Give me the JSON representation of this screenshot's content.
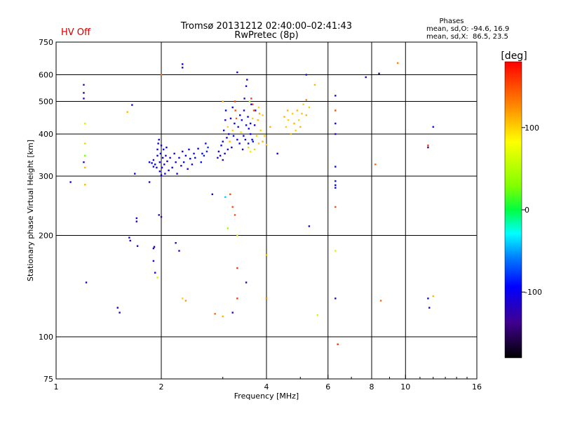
{
  "chart_data": {
    "type": "scatter",
    "title": "Tromsø 20131212 02:40:00–02:41:43",
    "subtitle": "RwPretec (8p)",
    "status": "HV Off",
    "status_color": "#d00000",
    "xlabel": "Frequency [MHz]",
    "ylabel": "Stationary phase Virtual Height [km]",
    "x_scale": "log",
    "y_scale": "log",
    "xlim": [
      1,
      16
    ],
    "ylim": [
      75,
      750
    ],
    "x_ticks": [
      {
        "value": 1,
        "label": "1"
      },
      {
        "value": 2,
        "label": "2"
      },
      {
        "value": 4,
        "label": "4"
      },
      {
        "value": 6,
        "label": "6"
      },
      {
        "value": 8,
        "label": "8"
      },
      {
        "value": 10,
        "label": "10"
      },
      {
        "value": 16,
        "label": "16"
      }
    ],
    "x_grid": [
      2,
      4,
      6,
      8,
      10
    ],
    "y_ticks": [
      {
        "value": 75,
        "label": "75"
      },
      {
        "value": 100,
        "label": "100"
      },
      {
        "value": 200,
        "label": "200"
      },
      {
        "value": 300,
        "label": "300"
      },
      {
        "value": 400,
        "label": "400"
      },
      {
        "value": 500,
        "label": "500"
      },
      {
        "value": 600,
        "label": "600"
      },
      {
        "value": 750,
        "label": "750"
      }
    ],
    "y_grid": [
      100,
      200,
      300,
      400,
      500,
      600
    ],
    "phases": {
      "heading": "Phases",
      "line_o": "mean, sd,O: -94.6, 16.9",
      "line_x": "mean, sd,X:  86.5, 23.5"
    },
    "colorbar": {
      "label": "[deg]",
      "range": [
        -180,
        180
      ],
      "ticks": [
        {
          "value": 100,
          "label": "100"
        },
        {
          "value": 0,
          "label": "0"
        },
        {
          "value": -100,
          "label": "-100"
        }
      ]
    },
    "series_units": "x: frequency MHz, y: virtual height km, p: phase deg",
    "points": [
      {
        "x": 1.1,
        "y": 288,
        "p": -110
      },
      {
        "x": 1.2,
        "y": 560,
        "p": -130
      },
      {
        "x": 1.2,
        "y": 530,
        "p": -150
      },
      {
        "x": 1.2,
        "y": 510,
        "p": -120
      },
      {
        "x": 1.21,
        "y": 430,
        "p": 60
      },
      {
        "x": 1.21,
        "y": 375,
        "p": 100
      },
      {
        "x": 1.21,
        "y": 345,
        "p": 30
      },
      {
        "x": 1.2,
        "y": 330,
        "p": -120
      },
      {
        "x": 1.21,
        "y": 318,
        "p": 110
      },
      {
        "x": 1.21,
        "y": 283,
        "p": 110
      },
      {
        "x": 1.22,
        "y": 145,
        "p": -110
      },
      {
        "x": 1.5,
        "y": 122,
        "p": -110
      },
      {
        "x": 1.52,
        "y": 118,
        "p": -115
      },
      {
        "x": 1.6,
        "y": 465,
        "p": 110
      },
      {
        "x": 1.65,
        "y": 488,
        "p": -110
      },
      {
        "x": 1.68,
        "y": 305,
        "p": -100
      },
      {
        "x": 1.62,
        "y": 197,
        "p": -110
      },
      {
        "x": 1.63,
        "y": 193,
        "p": -115
      },
      {
        "x": 1.7,
        "y": 225,
        "p": -110
      },
      {
        "x": 1.7,
        "y": 220,
        "p": -110
      },
      {
        "x": 1.71,
        "y": 186,
        "p": -120
      },
      {
        "x": 1.85,
        "y": 288,
        "p": -120
      },
      {
        "x": 1.9,
        "y": 183,
        "p": -115
      },
      {
        "x": 1.91,
        "y": 185,
        "p": -110
      },
      {
        "x": 1.9,
        "y": 168,
        "p": -110
      },
      {
        "x": 1.92,
        "y": 155,
        "p": -105
      },
      {
        "x": 1.95,
        "y": 150,
        "p": 60
      },
      {
        "x": 1.97,
        "y": 230,
        "p": -115
      },
      {
        "x": 2.0,
        "y": 227,
        "p": -140
      },
      {
        "x": 2.0,
        "y": 600,
        "p": 140
      },
      {
        "x": 1.85,
        "y": 330,
        "p": -105
      },
      {
        "x": 1.88,
        "y": 328,
        "p": -100
      },
      {
        "x": 1.9,
        "y": 335,
        "p": -105
      },
      {
        "x": 1.9,
        "y": 320,
        "p": -110
      },
      {
        "x": 1.92,
        "y": 325,
        "p": -100
      },
      {
        "x": 1.94,
        "y": 318,
        "p": -105
      },
      {
        "x": 1.95,
        "y": 345,
        "p": -100
      },
      {
        "x": 1.95,
        "y": 360,
        "p": -105
      },
      {
        "x": 1.96,
        "y": 375,
        "p": -100
      },
      {
        "x": 1.97,
        "y": 385,
        "p": -105
      },
      {
        "x": 1.98,
        "y": 310,
        "p": -100
      },
      {
        "x": 1.98,
        "y": 330,
        "p": -110
      },
      {
        "x": 1.99,
        "y": 350,
        "p": -100
      },
      {
        "x": 2.0,
        "y": 370,
        "p": -105
      },
      {
        "x": 2.0,
        "y": 302,
        "p": -105
      },
      {
        "x": 2.01,
        "y": 318,
        "p": -100
      },
      {
        "x": 2.02,
        "y": 340,
        "p": -105
      },
      {
        "x": 2.03,
        "y": 360,
        "p": -100
      },
      {
        "x": 2.04,
        "y": 325,
        "p": -110
      },
      {
        "x": 2.05,
        "y": 305,
        "p": -100
      },
      {
        "x": 2.06,
        "y": 345,
        "p": -105
      },
      {
        "x": 2.07,
        "y": 365,
        "p": -100
      },
      {
        "x": 2.08,
        "y": 332,
        "p": -105
      },
      {
        "x": 2.1,
        "y": 312,
        "p": -100
      },
      {
        "x": 2.12,
        "y": 340,
        "p": -110
      },
      {
        "x": 2.15,
        "y": 318,
        "p": -100
      },
      {
        "x": 2.18,
        "y": 350,
        "p": -105
      },
      {
        "x": 2.2,
        "y": 330,
        "p": -100
      },
      {
        "x": 2.22,
        "y": 305,
        "p": -105
      },
      {
        "x": 2.25,
        "y": 340,
        "p": -100
      },
      {
        "x": 2.28,
        "y": 322,
        "p": -110
      },
      {
        "x": 2.3,
        "y": 355,
        "p": -100
      },
      {
        "x": 2.32,
        "y": 330,
        "p": -95
      },
      {
        "x": 2.35,
        "y": 345,
        "p": -100
      },
      {
        "x": 2.38,
        "y": 315,
        "p": -105
      },
      {
        "x": 2.4,
        "y": 360,
        "p": -100
      },
      {
        "x": 2.42,
        "y": 338,
        "p": -95
      },
      {
        "x": 2.45,
        "y": 325,
        "p": -100
      },
      {
        "x": 2.48,
        "y": 350,
        "p": -90
      },
      {
        "x": 2.5,
        "y": 340,
        "p": -95
      },
      {
        "x": 2.55,
        "y": 362,
        "p": -100
      },
      {
        "x": 2.6,
        "y": 330,
        "p": -90
      },
      {
        "x": 2.62,
        "y": 350,
        "p": -95
      },
      {
        "x": 2.65,
        "y": 345,
        "p": -85
      },
      {
        "x": 2.68,
        "y": 375,
        "p": -90
      },
      {
        "x": 2.7,
        "y": 355,
        "p": -85
      },
      {
        "x": 2.72,
        "y": 365,
        "p": -80
      },
      {
        "x": 2.2,
        "y": 190,
        "p": -120
      },
      {
        "x": 2.25,
        "y": 180,
        "p": -120
      },
      {
        "x": 2.3,
        "y": 630,
        "p": -110
      },
      {
        "x": 2.3,
        "y": 645,
        "p": -100
      },
      {
        "x": 2.35,
        "y": 128,
        "p": 120
      },
      {
        "x": 2.3,
        "y": 130,
        "p": 100
      },
      {
        "x": 2.8,
        "y": 265,
        "p": -120
      },
      {
        "x": 2.85,
        "y": 117,
        "p": 140
      },
      {
        "x": 3.0,
        "y": 115,
        "p": 110
      },
      {
        "x": 3.0,
        "y": 500,
        "p": 110
      },
      {
        "x": 3.05,
        "y": 260,
        "p": -40
      },
      {
        "x": 3.1,
        "y": 210,
        "p": 40
      },
      {
        "x": 3.15,
        "y": 265,
        "p": 150
      },
      {
        "x": 3.2,
        "y": 243,
        "p": 150
      },
      {
        "x": 3.25,
        "y": 230,
        "p": 150
      },
      {
        "x": 3.3,
        "y": 200,
        "p": 60
      },
      {
        "x": 3.3,
        "y": 160,
        "p": 160
      },
      {
        "x": 3.3,
        "y": 130,
        "p": 160
      },
      {
        "x": 3.2,
        "y": 118,
        "p": -120
      },
      {
        "x": 2.9,
        "y": 340,
        "p": -110
      },
      {
        "x": 2.92,
        "y": 355,
        "p": -105
      },
      {
        "x": 2.95,
        "y": 345,
        "p": -110
      },
      {
        "x": 2.97,
        "y": 370,
        "p": -100
      },
      {
        "x": 3.0,
        "y": 335,
        "p": -120
      },
      {
        "x": 3.0,
        "y": 380,
        "p": -105
      },
      {
        "x": 3.02,
        "y": 410,
        "p": -100
      },
      {
        "x": 3.04,
        "y": 350,
        "p": -110
      },
      {
        "x": 3.05,
        "y": 440,
        "p": -120
      },
      {
        "x": 3.06,
        "y": 470,
        "p": -100
      },
      {
        "x": 3.08,
        "y": 390,
        "p": -105
      },
      {
        "x": 3.1,
        "y": 360,
        "p": -110
      },
      {
        "x": 3.1,
        "y": 420,
        "p": 100
      },
      {
        "x": 3.12,
        "y": 400,
        "p": -100
      },
      {
        "x": 3.14,
        "y": 380,
        "p": 110
      },
      {
        "x": 3.16,
        "y": 445,
        "p": -105
      },
      {
        "x": 3.18,
        "y": 365,
        "p": -110
      },
      {
        "x": 3.2,
        "y": 410,
        "p": 100
      },
      {
        "x": 3.2,
        "y": 480,
        "p": -100
      },
      {
        "x": 3.22,
        "y": 395,
        "p": -90
      },
      {
        "x": 3.24,
        "y": 430,
        "p": -105
      },
      {
        "x": 3.25,
        "y": 500,
        "p": 160
      },
      {
        "x": 3.26,
        "y": 470,
        "p": 150
      },
      {
        "x": 3.28,
        "y": 445,
        "p": 140
      },
      {
        "x": 3.3,
        "y": 385,
        "p": -100
      },
      {
        "x": 3.32,
        "y": 420,
        "p": -110
      },
      {
        "x": 3.35,
        "y": 375,
        "p": -105
      },
      {
        "x": 3.36,
        "y": 455,
        "p": -100
      },
      {
        "x": 3.38,
        "y": 405,
        "p": 95
      },
      {
        "x": 3.4,
        "y": 440,
        "p": -100
      },
      {
        "x": 3.42,
        "y": 360,
        "p": -110
      },
      {
        "x": 3.44,
        "y": 395,
        "p": -100
      },
      {
        "x": 3.45,
        "y": 470,
        "p": -110
      },
      {
        "x": 3.46,
        "y": 510,
        "p": -110
      },
      {
        "x": 3.48,
        "y": 385,
        "p": -105
      },
      {
        "x": 3.5,
        "y": 425,
        "p": -100
      },
      {
        "x": 3.5,
        "y": 555,
        "p": -110
      },
      {
        "x": 3.52,
        "y": 580,
        "p": -120
      },
      {
        "x": 3.54,
        "y": 450,
        "p": -100
      },
      {
        "x": 3.55,
        "y": 375,
        "p": -90
      },
      {
        "x": 3.56,
        "y": 415,
        "p": -95
      },
      {
        "x": 3.58,
        "y": 500,
        "p": 40
      },
      {
        "x": 3.6,
        "y": 400,
        "p": -100
      },
      {
        "x": 3.6,
        "y": 430,
        "p": -105
      },
      {
        "x": 3.62,
        "y": 490,
        "p": -100
      },
      {
        "x": 3.64,
        "y": 385,
        "p": -95
      },
      {
        "x": 3.65,
        "y": 445,
        "p": 100
      },
      {
        "x": 3.66,
        "y": 380,
        "p": -90
      },
      {
        "x": 3.7,
        "y": 425,
        "p": -100
      },
      {
        "x": 3.72,
        "y": 470,
        "p": -90
      },
      {
        "x": 3.75,
        "y": 395,
        "p": 100
      },
      {
        "x": 3.78,
        "y": 440,
        "p": 110
      },
      {
        "x": 3.8,
        "y": 375,
        "p": 105
      },
      {
        "x": 3.85,
        "y": 410,
        "p": 100
      },
      {
        "x": 3.9,
        "y": 380,
        "p": 110
      },
      {
        "x": 3.95,
        "y": 395,
        "p": 100
      },
      {
        "x": 4.0,
        "y": 372,
        "p": 105
      },
      {
        "x": 3.62,
        "y": 510,
        "p": 160
      },
      {
        "x": 3.65,
        "y": 490,
        "p": 160
      },
      {
        "x": 3.68,
        "y": 470,
        "p": 150
      },
      {
        "x": 3.55,
        "y": 365,
        "p": 100
      },
      {
        "x": 3.6,
        "y": 355,
        "p": 90
      },
      {
        "x": 3.7,
        "y": 360,
        "p": 100
      },
      {
        "x": 3.8,
        "y": 480,
        "p": 100
      },
      {
        "x": 3.82,
        "y": 460,
        "p": 110
      },
      {
        "x": 3.9,
        "y": 455,
        "p": 100
      },
      {
        "x": 3.5,
        "y": 145,
        "p": -130
      },
      {
        "x": 3.3,
        "y": 610,
        "p": -110
      },
      {
        "x": 4.0,
        "y": 130,
        "p": 130
      },
      {
        "x": 4.0,
        "y": 175,
        "p": 110
      },
      {
        "x": 4.1,
        "y": 420,
        "p": 110
      },
      {
        "x": 4.3,
        "y": 350,
        "p": -110
      },
      {
        "x": 4.5,
        "y": 450,
        "p": 110
      },
      {
        "x": 4.55,
        "y": 420,
        "p": 100
      },
      {
        "x": 4.6,
        "y": 470,
        "p": 110
      },
      {
        "x": 4.62,
        "y": 440,
        "p": 100
      },
      {
        "x": 4.7,
        "y": 400,
        "p": 110
      },
      {
        "x": 4.75,
        "y": 460,
        "p": 100
      },
      {
        "x": 4.8,
        "y": 430,
        "p": 110
      },
      {
        "x": 4.85,
        "y": 410,
        "p": 100
      },
      {
        "x": 4.9,
        "y": 470,
        "p": 110
      },
      {
        "x": 4.95,
        "y": 440,
        "p": 100
      },
      {
        "x": 5.0,
        "y": 420,
        "p": 110
      },
      {
        "x": 5.05,
        "y": 460,
        "p": 105
      },
      {
        "x": 5.1,
        "y": 490,
        "p": 100
      },
      {
        "x": 5.2,
        "y": 455,
        "p": 110
      },
      {
        "x": 5.2,
        "y": 505,
        "p": 130
      },
      {
        "x": 5.3,
        "y": 213,
        "p": -110
      },
      {
        "x": 5.3,
        "y": 480,
        "p": 100
      },
      {
        "x": 5.5,
        "y": 560,
        "p": 110
      },
      {
        "x": 5.6,
        "y": 116,
        "p": 60
      },
      {
        "x": 5.2,
        "y": 600,
        "p": -90
      },
      {
        "x": 6.3,
        "y": 520,
        "p": -110
      },
      {
        "x": 6.3,
        "y": 470,
        "p": 150
      },
      {
        "x": 6.3,
        "y": 430,
        "p": -100
      },
      {
        "x": 6.3,
        "y": 400,
        "p": -120
      },
      {
        "x": 6.3,
        "y": 320,
        "p": -100
      },
      {
        "x": 6.3,
        "y": 290,
        "p": -90
      },
      {
        "x": 6.3,
        "y": 282,
        "p": -95
      },
      {
        "x": 6.3,
        "y": 277,
        "p": -100
      },
      {
        "x": 6.3,
        "y": 243,
        "p": 150
      },
      {
        "x": 6.3,
        "y": 180,
        "p": 60
      },
      {
        "x": 6.3,
        "y": 130,
        "p": -120
      },
      {
        "x": 6.4,
        "y": 95,
        "p": 160
      },
      {
        "x": 7.7,
        "y": 590,
        "p": -120
      },
      {
        "x": 8.2,
        "y": 325,
        "p": 140
      },
      {
        "x": 8.4,
        "y": 605,
        "p": -130
      },
      {
        "x": 8.5,
        "y": 128,
        "p": 140
      },
      {
        "x": 9.5,
        "y": 650,
        "p": 130
      },
      {
        "x": 11.6,
        "y": 365,
        "p": -130
      },
      {
        "x": 11.6,
        "y": 370,
        "p": 160
      },
      {
        "x": 11.6,
        "y": 130,
        "p": -110
      },
      {
        "x": 11.7,
        "y": 122,
        "p": -105
      },
      {
        "x": 12.0,
        "y": 420,
        "p": -90
      },
      {
        "x": 12.0,
        "y": 132,
        "p": 110
      }
    ]
  }
}
